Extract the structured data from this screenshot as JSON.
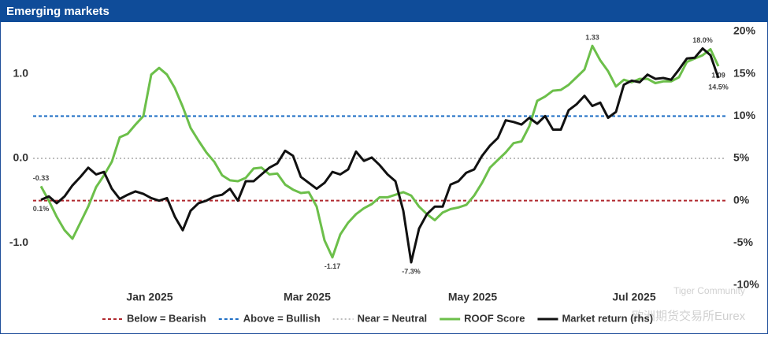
{
  "chart_data": {
    "type": "line",
    "title": "Emerging markets",
    "ylim": [
      -1.5,
      1.5
    ],
    "yticks": [
      {
        "value": -1,
        "label": "-1.0"
      },
      {
        "value": 0,
        "label": "0.0"
      },
      {
        "value": 1,
        "label": "1.0"
      }
    ],
    "y2lim": [
      -10,
      20
    ],
    "y2ticks": [
      {
        "value": -10,
        "label": "-10%"
      },
      {
        "value": -5,
        "label": "-5%"
      },
      {
        "value": 0,
        "label": "0%"
      },
      {
        "value": 5,
        "label": "5%"
      },
      {
        "value": 10,
        "label": "10%"
      },
      {
        "value": 15,
        "label": "15%"
      },
      {
        "value": 20,
        "label": "20%"
      }
    ],
    "xlim": [
      -1,
      87
    ],
    "xticks": [
      {
        "value": 13.8,
        "label": "Jan 2025"
      },
      {
        "value": 33.8,
        "label": "Mar 2025"
      },
      {
        "value": 54.8,
        "label": "May 2025"
      },
      {
        "value": 75.3,
        "label": "Jul 2025"
      }
    ],
    "reference_lines": [
      {
        "name": "Below = Bearish",
        "color": "#b0282e",
        "value": -0.5,
        "style": "dashed"
      },
      {
        "name": "Above = Bullish",
        "color": "#1f6fc5",
        "value": 0.5,
        "style": "dashed"
      },
      {
        "name": "Near = Neutral",
        "color": "#bdbdbd",
        "value": 0,
        "style": "dotted"
      }
    ],
    "series": [
      {
        "name": "ROOF Score",
        "color": "#6cbf4a",
        "values": [
          -0.33,
          -0.5,
          -0.69,
          -0.85,
          -0.95,
          -0.76,
          -0.57,
          -0.34,
          -0.2,
          -0.04,
          0.25,
          0.29,
          0.4,
          0.5,
          0.99,
          1.07,
          0.99,
          0.83,
          0.61,
          0.36,
          0.21,
          0.07,
          -0.04,
          -0.2,
          -0.26,
          -0.27,
          -0.23,
          -0.12,
          -0.11,
          -0.19,
          -0.18,
          -0.31,
          -0.37,
          -0.41,
          -0.4,
          -0.57,
          -0.97,
          -1.17,
          -0.9,
          -0.76,
          -0.66,
          -0.59,
          -0.54,
          -0.46,
          -0.46,
          -0.43,
          -0.4,
          -0.44,
          -0.57,
          -0.66,
          -0.73,
          -0.64,
          -0.6,
          -0.58,
          -0.55,
          -0.44,
          -0.29,
          -0.11,
          -0.02,
          0.07,
          0.18,
          0.2,
          0.38,
          0.68,
          0.73,
          0.8,
          0.81,
          0.87,
          0.96,
          1.05,
          1.33,
          1.16,
          1.03,
          0.85,
          0.93,
          0.9,
          0.94,
          0.94,
          0.89,
          0.91,
          0.91,
          0.96,
          1.14,
          1.18,
          1.22,
          1.29,
          1.09
        ],
        "value_labels": [
          "-0.33",
          null,
          null,
          null,
          null,
          null,
          null,
          null,
          null,
          null,
          null,
          null,
          null,
          null,
          null,
          null,
          null,
          null,
          null,
          null,
          null,
          null,
          null,
          null,
          null,
          null,
          null,
          null,
          null,
          null,
          null,
          null,
          null,
          null,
          null,
          null,
          null,
          "-1.17",
          null,
          null,
          null,
          null,
          null,
          null,
          null,
          null,
          null,
          null,
          null,
          null,
          null,
          null,
          null,
          null,
          null,
          null,
          null,
          null,
          null,
          null,
          null,
          null,
          null,
          null,
          null,
          null,
          null,
          null,
          null,
          null,
          "1.33",
          null,
          null,
          null,
          null,
          null,
          null,
          null,
          null,
          null,
          null,
          null,
          null,
          null,
          null,
          null,
          "1.09"
        ]
      },
      {
        "name": "Market return (rhs)",
        "color": "#111111",
        "axis": "y2",
        "values": [
          0.1,
          0.5,
          -0.3,
          0.5,
          1.8,
          2.8,
          3.9,
          3.1,
          3.4,
          1.4,
          0.2,
          0.7,
          1.1,
          0.8,
          0.3,
          0,
          0.3,
          -1.9,
          -3.5,
          -1.2,
          -0.3,
          0,
          0.5,
          0.7,
          1.4,
          0,
          2.3,
          2.3,
          3.1,
          3.9,
          4.4,
          5.9,
          5.3,
          2.8,
          2.1,
          1.4,
          2.1,
          3.4,
          3.1,
          3.7,
          5.8,
          4.7,
          5.1,
          4.2,
          3.1,
          2.3,
          -1.2,
          -7.3,
          -3.3,
          -1.6,
          -0.7,
          -0.7,
          1.9,
          2.3,
          3.3,
          3.7,
          5.3,
          6.5,
          7.4,
          9.5,
          9.3,
          9.0,
          9.8,
          9.1,
          10.0,
          8.4,
          8.4,
          10.7,
          11.4,
          12.4,
          11.2,
          11.6,
          9.8,
          10.5,
          13.7,
          14.2,
          14.0,
          14.9,
          14.4,
          14.5,
          14.3,
          15.5,
          16.8,
          16.9,
          18.0,
          17.2,
          14.5
        ],
        "value_labels": [
          "0.1%",
          null,
          null,
          null,
          null,
          null,
          null,
          null,
          null,
          null,
          null,
          null,
          null,
          null,
          null,
          null,
          null,
          null,
          null,
          null,
          null,
          null,
          null,
          null,
          null,
          null,
          null,
          null,
          null,
          null,
          null,
          null,
          null,
          null,
          null,
          null,
          null,
          null,
          null,
          null,
          null,
          null,
          null,
          null,
          null,
          null,
          null,
          "-7.3%",
          null,
          null,
          null,
          null,
          null,
          null,
          null,
          null,
          null,
          null,
          null,
          null,
          null,
          null,
          null,
          null,
          null,
          null,
          null,
          null,
          null,
          null,
          null,
          null,
          null,
          null,
          null,
          null,
          null,
          null,
          null,
          null,
          null,
          null,
          null,
          null,
          "18.0%",
          null,
          "14.5%"
        ]
      }
    ],
    "watermarks": [
      "Tiger Community",
      "欧洲期货交易所Eurex"
    ]
  }
}
